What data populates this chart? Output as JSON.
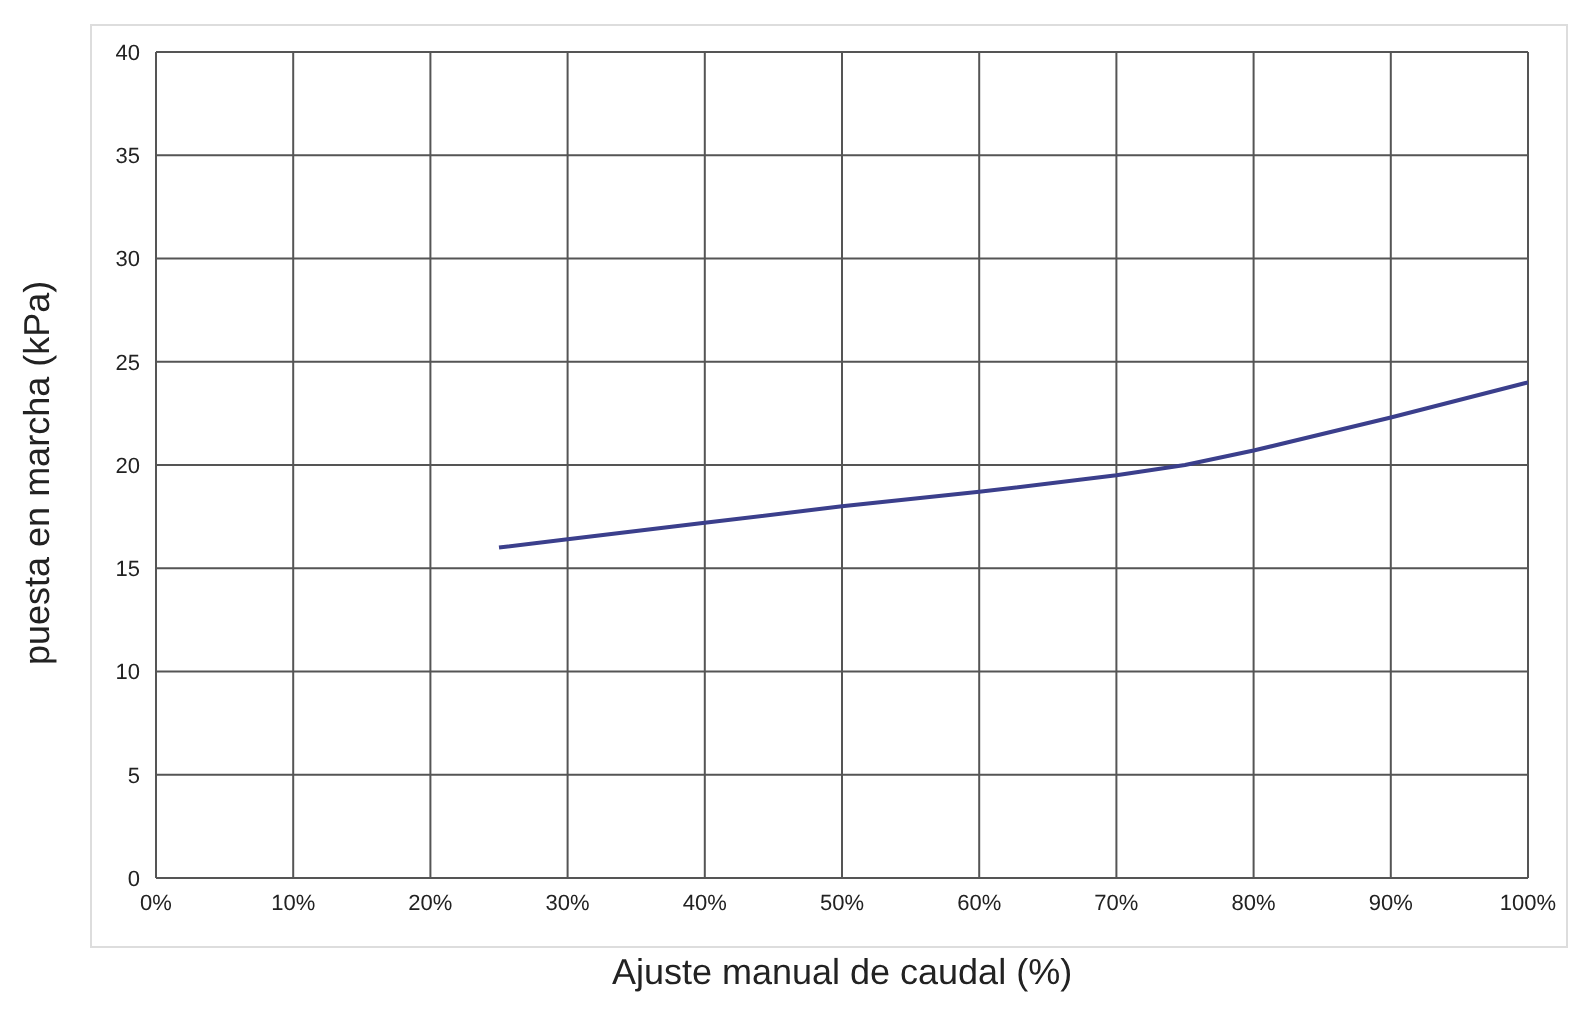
{
  "chart_data": {
    "type": "line",
    "xlabel": "Ajuste manual de caudal (%)",
    "ylabel": "puesta en marcha (kPa)",
    "x": [
      25,
      30,
      40,
      50,
      60,
      70,
      75,
      80,
      90,
      100
    ],
    "series": [
      {
        "color": "#3b3f8c",
        "values": [
          16,
          16.4,
          17.2,
          18,
          18.7,
          19.5,
          20,
          20.7,
          22.3,
          24
        ]
      }
    ],
    "xlim": [
      0,
      100
    ],
    "xticks": [
      {
        "value": 0,
        "label": "0%"
      },
      {
        "value": 10,
        "label": "10%"
      },
      {
        "value": 20,
        "label": "20%"
      },
      {
        "value": 30,
        "label": "30%"
      },
      {
        "value": 40,
        "label": "40%"
      },
      {
        "value": 50,
        "label": "50%"
      },
      {
        "value": 60,
        "label": "60%"
      },
      {
        "value": 70,
        "label": "70%"
      },
      {
        "value": 80,
        "label": "80%"
      },
      {
        "value": 90,
        "label": "90%"
      },
      {
        "value": 100,
        "label": "100%"
      }
    ],
    "ylim": [
      0,
      40
    ],
    "yticks": [
      0,
      5,
      10,
      15,
      20,
      25,
      30,
      35,
      40
    ],
    "grid": true,
    "legend": false,
    "marker": "none",
    "line_style": "solid"
  }
}
